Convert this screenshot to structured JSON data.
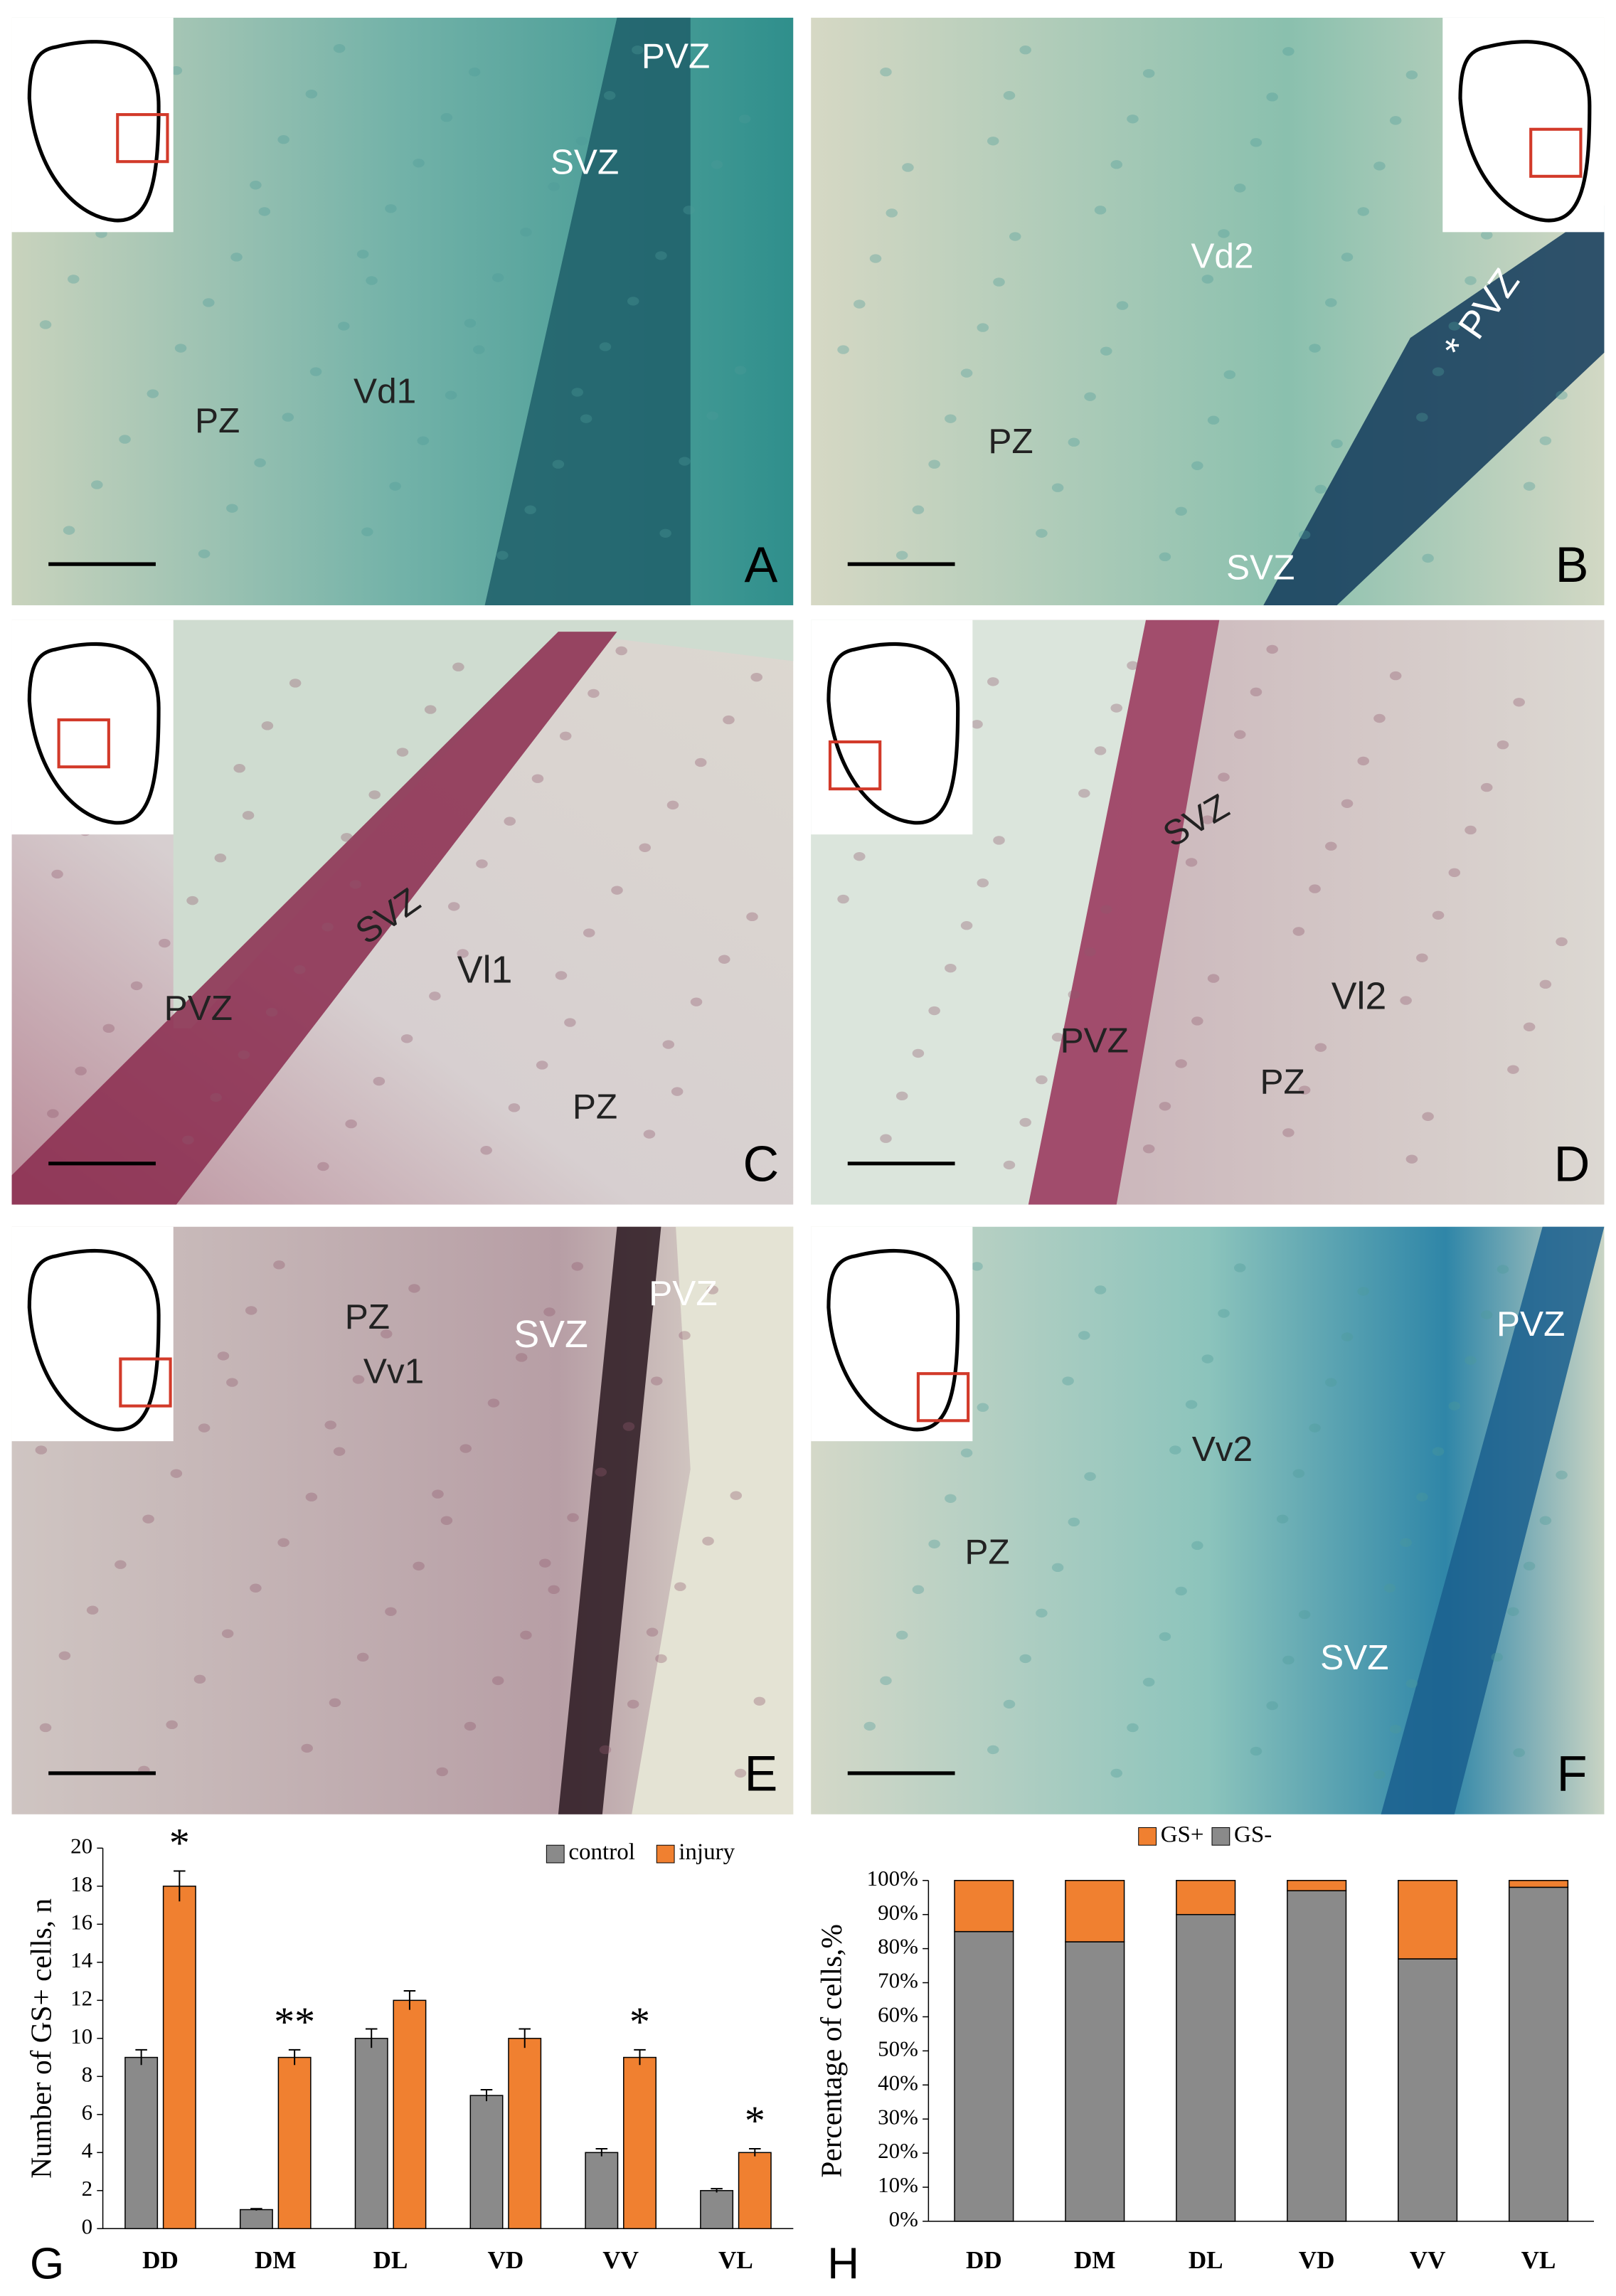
{
  "panels": [
    {
      "letter": "A",
      "labels": [
        "PVZ",
        "SVZ",
        "Vd1",
        "PZ"
      ]
    },
    {
      "letter": "B",
      "labels": [
        "Vd2",
        "* PVZ",
        "PZ",
        "SVZ"
      ]
    },
    {
      "letter": "C",
      "labels": [
        "SVZ",
        "Vl1",
        "PVZ",
        "PZ"
      ]
    },
    {
      "letter": "D",
      "labels": [
        "SVZ",
        "Vl2",
        "PVZ",
        "PZ"
      ]
    },
    {
      "letter": "E",
      "labels": [
        "PZ",
        "SVZ",
        "PVZ",
        "Vv1"
      ]
    },
    {
      "letter": "F",
      "labels": [
        "PVZ",
        "Vv2",
        "PZ",
        "SVZ"
      ]
    }
  ],
  "chart_data": [
    {
      "type": "bar",
      "panel": "G",
      "y_label": "Number of GS+ cells, n",
      "categories": [
        "DD",
        "DM",
        "DL",
        "VD",
        "VV",
        "VL"
      ],
      "series": [
        {
          "name": "control",
          "color": "#8a8a8a",
          "values": [
            9,
            1,
            10,
            7,
            4,
            2
          ],
          "errors": [
            0.4,
            0.05,
            0.5,
            0.3,
            0.2,
            0.1
          ]
        },
        {
          "name": "injury",
          "color": "#f08030",
          "values": [
            18,
            9,
            12,
            10,
            9,
            4
          ],
          "errors": [
            0.8,
            0.4,
            0.5,
            0.5,
            0.4,
            0.2
          ],
          "significance": [
            "*",
            "**",
            null,
            null,
            "*",
            "*"
          ]
        }
      ],
      "ylim": [
        0,
        20
      ],
      "yticks": [
        0,
        2,
        4,
        6,
        8,
        10,
        12,
        14,
        16,
        18,
        20
      ],
      "legend": "top-right"
    },
    {
      "type": "stacked-bar",
      "panel": "H",
      "y_label": "Percentage of cells,%",
      "categories": [
        "DD",
        "DM",
        "DL",
        "VD",
        "VV",
        "VL"
      ],
      "series": [
        {
          "name": "GS+",
          "color": "#f08030",
          "values": [
            15,
            18,
            10,
            3,
            23,
            2
          ]
        },
        {
          "name": "GS-",
          "color": "#8a8a8a",
          "values": [
            85,
            82,
            90,
            97,
            77,
            98
          ]
        }
      ],
      "ylim": [
        0,
        100
      ],
      "yticks": [
        {
          "value": 0,
          "label": "0%"
        },
        {
          "value": 10,
          "label": "10%"
        },
        {
          "value": 20,
          "label": "20%"
        },
        {
          "value": 30,
          "label": "30%"
        },
        {
          "value": 40,
          "label": "40%"
        },
        {
          "value": 50,
          "label": "50%"
        },
        {
          "value": 60,
          "label": "60%"
        },
        {
          "value": 70,
          "label": "70%"
        },
        {
          "value": 80,
          "label": "80%"
        },
        {
          "value": 90,
          "label": "90%"
        },
        {
          "value": 100,
          "label": "100%"
        }
      ],
      "legend": "top"
    }
  ]
}
